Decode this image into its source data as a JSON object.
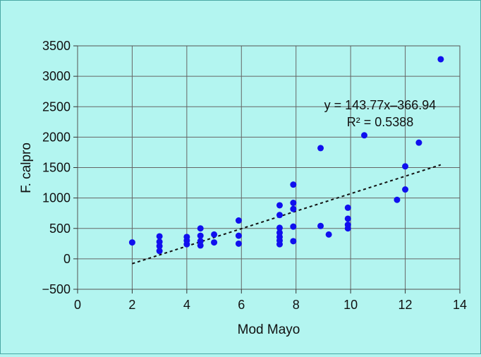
{
  "chart_data": {
    "type": "scatter",
    "title": "",
    "xlabel": "Mod Mayo",
    "ylabel": "F. calpro",
    "xlim": [
      0,
      14
    ],
    "ylim": [
      -500,
      3500
    ],
    "xticks": [
      0,
      2,
      4,
      6,
      8,
      10,
      12,
      14
    ],
    "yticks": [
      -500,
      0,
      500,
      1000,
      1500,
      2000,
      2500,
      3000,
      3500
    ],
    "xtick_labels": [
      "0",
      "2",
      "4",
      "6",
      "8",
      "10",
      "12",
      "14"
    ],
    "ytick_labels": [
      "−500",
      "0",
      "500",
      "1000",
      "1500",
      "2000",
      "2500",
      "3000",
      "3500"
    ],
    "grid": true,
    "marker_color": "#1010ee",
    "plot_background": "#b3f5f0",
    "points": [
      {
        "x": 2,
        "y": 270
      },
      {
        "x": 3,
        "y": 370
      },
      {
        "x": 3,
        "y": 280
      },
      {
        "x": 3,
        "y": 210
      },
      {
        "x": 3,
        "y": 130
      },
      {
        "x": 4,
        "y": 360
      },
      {
        "x": 4,
        "y": 300
      },
      {
        "x": 4,
        "y": 240
      },
      {
        "x": 4.5,
        "y": 500
      },
      {
        "x": 4.5,
        "y": 380
      },
      {
        "x": 4.5,
        "y": 290
      },
      {
        "x": 4.5,
        "y": 220
      },
      {
        "x": 5,
        "y": 400
      },
      {
        "x": 5,
        "y": 270
      },
      {
        "x": 5.9,
        "y": 630
      },
      {
        "x": 5.9,
        "y": 380
      },
      {
        "x": 5.9,
        "y": 250
      },
      {
        "x": 7.4,
        "y": 880
      },
      {
        "x": 7.4,
        "y": 720
      },
      {
        "x": 7.4,
        "y": 510
      },
      {
        "x": 7.4,
        "y": 430
      },
      {
        "x": 7.4,
        "y": 360
      },
      {
        "x": 7.4,
        "y": 300
      },
      {
        "x": 7.4,
        "y": 240
      },
      {
        "x": 7.9,
        "y": 1220
      },
      {
        "x": 7.9,
        "y": 920
      },
      {
        "x": 7.9,
        "y": 820
      },
      {
        "x": 7.9,
        "y": 530
      },
      {
        "x": 7.9,
        "y": 290
      },
      {
        "x": 8.9,
        "y": 1820
      },
      {
        "x": 8.9,
        "y": 540
      },
      {
        "x": 9.2,
        "y": 400
      },
      {
        "x": 9.9,
        "y": 840
      },
      {
        "x": 9.9,
        "y": 660
      },
      {
        "x": 9.9,
        "y": 560
      },
      {
        "x": 9.9,
        "y": 500
      },
      {
        "x": 10.5,
        "y": 2030
      },
      {
        "x": 11.7,
        "y": 970
      },
      {
        "x": 12,
        "y": 1520
      },
      {
        "x": 12,
        "y": 1140
      },
      {
        "x": 12.5,
        "y": 1910
      },
      {
        "x": 13.3,
        "y": 3280
      }
    ],
    "trendline": {
      "slope": 143.77,
      "intercept": -366.94,
      "x_range": [
        2,
        13.3
      ],
      "style": "dashed"
    },
    "annotations": {
      "equation": "y = 143.77x–366.94",
      "r_squared": "R² = 0.5388"
    }
  }
}
